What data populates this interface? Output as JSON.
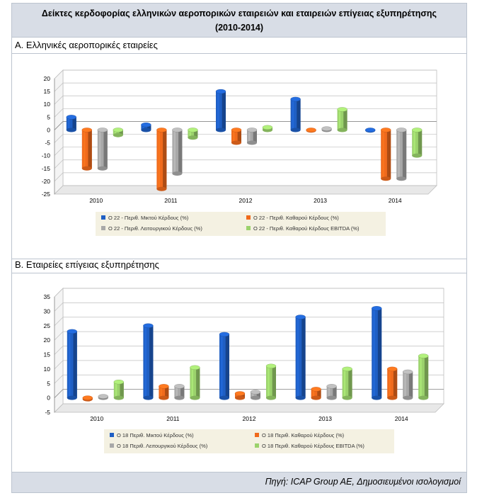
{
  "title_line1": "Δείκτες κερδοφορίας ελληνικών αεροπορικών εταιρειών και εταιρειών επίγειας εξυπηρέτησης",
  "title_line2": "(2010-2014)",
  "section_a_label": "Α. Ελληνικές αεροπορικές εταιρείες",
  "section_b_label": "Β. Εταιρείες επίγειας εξυπηρέτησης",
  "source": "Πηγή: ICAP Group AE, Δημοσιευμένοι ισολογισμοί",
  "colors": {
    "s1": "#1f5fc4",
    "s2": "#f06a1c",
    "s3": "#a8a8a8",
    "s4": "#9bd26c"
  },
  "chart_data": [
    {
      "type": "bar",
      "categories": [
        "2010",
        "2011",
        "2012",
        "2013",
        "2014"
      ],
      "ylim": [
        -25,
        20
      ],
      "yticks": [
        -25,
        -20,
        -15,
        -10,
        -5,
        0,
        5,
        10,
        15,
        20
      ],
      "series": [
        {
          "name": "Ο 22 - Περιθ. Μικτού Κέρδους (%)",
          "values": [
            5,
            2,
            15,
            12,
            0
          ]
        },
        {
          "name": "Ο 22 - Περιθ. Καθαρού Κέρδους (%)",
          "values": [
            -15,
            -23,
            -5,
            0,
            -19
          ]
        },
        {
          "name": "Ο 22 - Περιθ. Λειτουργικού Κέρδους (%)",
          "values": [
            -15,
            -17,
            -5,
            0.5,
            -19
          ]
        },
        {
          "name": "Ο 22 - Περιθ. Καθαρού Κέρδους EBITDA (%)",
          "values": [
            -2,
            -3,
            1,
            8,
            -10
          ]
        }
      ]
    },
    {
      "type": "bar",
      "categories": [
        "2010",
        "2011",
        "2012",
        "2013",
        "2014"
      ],
      "ylim": [
        -5,
        35
      ],
      "yticks": [
        -5,
        0,
        5,
        10,
        15,
        20,
        25,
        30,
        35
      ],
      "series": [
        {
          "name": "Ο 18 Περιθ. Μικτού Κέρδους (%)",
          "values": [
            23,
            25,
            22,
            28,
            31
          ]
        },
        {
          "name": "Ο 18 Περιθ. Καθαρού Κέρδους (%)",
          "values": [
            -0.5,
            4,
            1.5,
            3,
            10
          ]
        },
        {
          "name": "Ο 18 Περιθ. Λειτουργικού Κέρδους (%)",
          "values": [
            0.5,
            4,
            2,
            4,
            9
          ]
        },
        {
          "name": "Ο 18 Περιθ. Καθαρού Κέρδους EBITDA (%)",
          "values": [
            5.5,
            10.5,
            11,
            10,
            14.5
          ]
        }
      ]
    }
  ]
}
